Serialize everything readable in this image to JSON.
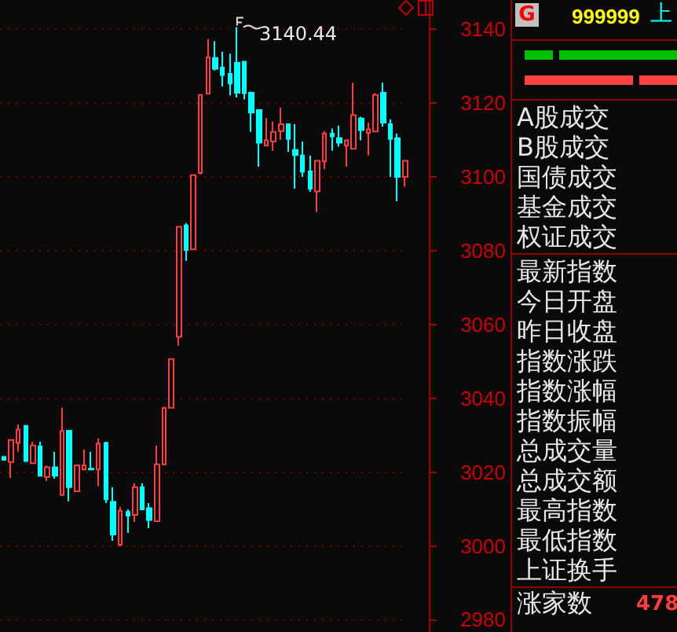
{
  "chart_data": [
    {
      "type": "candlestick",
      "categories": [
        null,
        null,
        null,
        null,
        null,
        null,
        null,
        null,
        null,
        null,
        null,
        null,
        null,
        null,
        null,
        null,
        null,
        null,
        null,
        null,
        null,
        null,
        null,
        null,
        null,
        null,
        null,
        null,
        null,
        null,
        null,
        null,
        null,
        null,
        null,
        null,
        null,
        null,
        null,
        null,
        null,
        null,
        null,
        null,
        null,
        null,
        null,
        null,
        null,
        null,
        null,
        null,
        null,
        null,
        null,
        null
      ],
      "ohlc": [
        [
          3024.1,
          3024.1,
          3023.3,
          3023.3
        ],
        [
          3022.7,
          3028.7,
          3018.4,
          3028.7
        ],
        [
          3027.9,
          3032.9,
          3025.5,
          3031.5
        ],
        [
          3032.5,
          3032.5,
          3022.7,
          3023.0
        ],
        [
          3022.4,
          3028.2,
          3022.4,
          3027.2
        ],
        [
          3027.0,
          3028.2,
          3019.0,
          3019.0
        ],
        [
          3018.7,
          3021.8,
          3017.6,
          3021.3
        ],
        [
          3021.3,
          3025.5,
          3018.2,
          3019.0
        ],
        [
          3013.8,
          3037.4,
          3013.5,
          3031.1
        ],
        [
          3031.2,
          3031.2,
          3012.1,
          3015.9
        ],
        [
          3014.8,
          3021.8,
          3014.8,
          3021.8
        ],
        [
          3020.7,
          3026.1,
          3020.7,
          3021.8
        ],
        [
          3020.9,
          3025.5,
          3020.7,
          3020.7
        ],
        [
          3020.7,
          3029.1,
          3016.2,
          3027.7
        ],
        [
          3027.9,
          3028.2,
          3011.6,
          3012.6
        ],
        [
          3011.9,
          3015.9,
          3001.4,
          3003.1
        ],
        [
          3000.3,
          3010.6,
          2999.9,
          3009.5
        ],
        [
          3009.2,
          3009.9,
          3003.5,
          3008.2
        ],
        [
          3008.4,
          3017.0,
          3006.5,
          3015.9
        ],
        [
          3015.9,
          3017.0,
          3009.9,
          3009.9
        ],
        [
          3010.2,
          3011.6,
          3004.8,
          3007.0
        ],
        [
          3006.7,
          3027.2,
          3006.7,
          3022.1
        ],
        [
          3022.1,
          3037.4,
          3021.8,
          3037.4
        ],
        [
          3037.4,
          3050.6,
          3037.4,
          3050.6
        ],
        [
          3056.6,
          3086.4,
          3054.2,
          3086.4
        ],
        [
          3086.8,
          3087.4,
          3077.2,
          3080.1
        ],
        [
          3080.3,
          3100.4,
          3080.3,
          3100.4
        ],
        [
          3101.0,
          3122.1,
          3100.6,
          3122.1
        ],
        [
          3122.4,
          3137.2,
          3122.4,
          3132.3
        ],
        [
          3132.1,
          3136.7,
          3128.7,
          3129.2
        ],
        [
          3129.5,
          3133.8,
          3124.4,
          3127.5
        ],
        [
          3127.8,
          3133.3,
          3122.0,
          3125.2
        ],
        [
          3130.8,
          3140.44,
          3121.4,
          3122.7
        ],
        [
          3131.1,
          3131.1,
          3120.9,
          3122.6
        ],
        [
          3122.7,
          3123.0,
          3112.1,
          3117.3
        ],
        [
          3118.0,
          3118.0,
          3102.7,
          3109.2
        ],
        [
          3108.4,
          3115.9,
          3108.4,
          3109.8
        ],
        [
          3109.5,
          3114.9,
          3107.0,
          3112.1
        ],
        [
          3112.3,
          3118.7,
          3109.9,
          3114.2
        ],
        [
          3114.2,
          3114.2,
          3106.7,
          3110.2
        ],
        [
          3107.2,
          3114.2,
          3096.7,
          3105.8
        ],
        [
          3105.7,
          3109.5,
          3099.9,
          3101.3
        ],
        [
          3101.4,
          3105.7,
          3095.9,
          3096.7
        ],
        [
          3096.0,
          3104.3,
          3090.4,
          3104.3
        ],
        [
          3104.1,
          3112.3,
          3102.0,
          3111.6
        ],
        [
          3111.6,
          3113.0,
          3107.0,
          3110.9
        ],
        [
          3110.4,
          3113.8,
          3108.1,
          3109.2
        ],
        [
          3108.4,
          3109.8,
          3102.7,
          3109.8
        ],
        [
          3107.5,
          3125.4,
          3107.5,
          3116.6
        ],
        [
          3115.7,
          3116.2,
          3109.8,
          3112.6
        ],
        [
          3111.8,
          3114.6,
          3105.7,
          3112.8
        ],
        [
          3112.2,
          3122.6,
          3112.2,
          3122.1
        ],
        [
          3122.7,
          3125.4,
          3113.5,
          3114.6
        ],
        [
          3114.2,
          3115.5,
          3099.9,
          3110.2
        ],
        [
          3110.4,
          3111.6,
          3093.3,
          3099.9
        ],
        [
          3099.9,
          3104.3,
          3097.2,
          3104.3
        ]
      ],
      "colors": [
        "#00ffff",
        "#ff3c3c",
        "#ff3c3c",
        "#00ffff",
        "#ff3c3c",
        "#00ffff",
        "#ff3c3c",
        "#00ffff",
        "#ff3c3c",
        "#00ffff",
        "#ff3c3c",
        "#ff3c3c",
        "#00ffff",
        "#ff3c3c",
        "#00ffff",
        "#00ffff",
        "#ff3c3c",
        "#00ffff",
        "#ff3c3c",
        "#00ffff",
        "#00ffff",
        "#ff3c3c",
        "#ff3c3c",
        "#ff3c3c",
        "#ff3c3c",
        "#00ffff",
        "#ff3c3c",
        "#ff3c3c",
        "#ff3c3c",
        "#00ffff",
        "#00ffff",
        "#00ffff",
        "#00ffff",
        "#00ffff",
        "#00ffff",
        "#00ffff",
        "#ff3c3c",
        "#ff3c3c",
        "#ff3c3c",
        "#00ffff",
        "#00ffff",
        "#00ffff",
        "#00ffff",
        "#ff3c3c",
        "#ff3c3c",
        "#00ffff",
        "#00ffff",
        "#ff3c3c",
        "#ff3c3c",
        "#00ffff",
        "#ff3c3c",
        "#ff3c3c",
        "#00ffff",
        "#00ffff",
        "#00ffff",
        "#ff3c3c"
      ],
      "ylim": [
        2976.7,
        3147.8
      ],
      "yticks": [
        2980,
        3000,
        3020,
        3040,
        3060,
        3080,
        3100,
        3120,
        3140
      ],
      "grid": "y",
      "tick_labels": "y",
      "annotations": [
        "3140.44"
      ]
    },
    {
      "type": "other",
      "annotations": [
        "G",
        "999999",
        "上",
        "A股成交",
        "B股成交",
        "国债成交",
        "基金成交",
        "权证成交",
        "最新指数",
        "今日开盘",
        "昨日收盘",
        "指数涨跌",
        "指数涨幅",
        "指数振幅",
        "总成交量",
        "总成交额",
        "最高指数",
        "最低指数",
        "上证换手",
        "涨家数",
        "478"
      ]
    }
  ]
}
